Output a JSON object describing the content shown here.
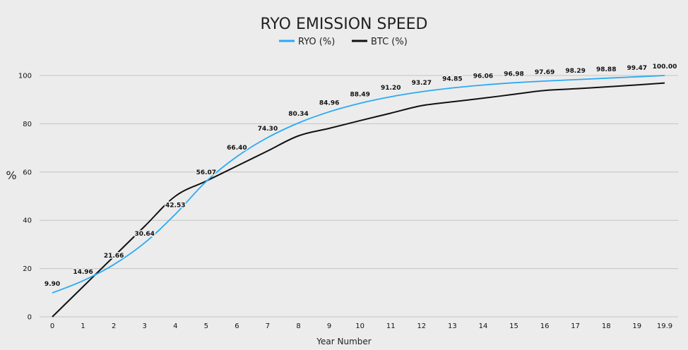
{
  "chart_data": {
    "type": "line",
    "title": "RYO EMISSION SPEED",
    "xlabel": "Year Number",
    "ylabel": "%",
    "ylim": [
      0,
      100
    ],
    "yticks": [
      "0",
      "20",
      "40",
      "60",
      "80",
      "100"
    ],
    "categories": [
      "0",
      "1",
      "2",
      "3",
      "4",
      "5",
      "6",
      "7",
      "8",
      "9",
      "10",
      "11",
      "12",
      "13",
      "14",
      "15",
      "16",
      "17",
      "18",
      "19",
      "19.9"
    ],
    "x": [
      0,
      1,
      2,
      3,
      4,
      5,
      6,
      7,
      8,
      9,
      10,
      11,
      12,
      13,
      14,
      15,
      16,
      17,
      18,
      19,
      19.9
    ],
    "grid": true,
    "legend": "top-center",
    "series": [
      {
        "name": "RYO (%)",
        "color": "#29aaf4",
        "values": [
          9.9,
          14.96,
          21.66,
          30.64,
          42.53,
          56.07,
          66.4,
          74.3,
          80.34,
          84.96,
          88.49,
          91.2,
          93.27,
          94.85,
          96.06,
          96.98,
          97.69,
          98.29,
          98.88,
          99.47,
          100.0
        ],
        "labels": [
          "9.90",
          "14.96",
          "21.66",
          "30.64",
          "42.53",
          "56.07",
          "66.40",
          "74.30",
          "80.34",
          "84.96",
          "88.49",
          "91.20",
          "93.27",
          "94.85",
          "96.06",
          "96.98",
          "97.69",
          "98.29",
          "98.88",
          "99.47",
          "100.00"
        ]
      },
      {
        "name": "BTC (%)",
        "color": "#111111",
        "values": [
          0,
          12.5,
          25,
          37.5,
          50,
          56.25,
          62.5,
          68.75,
          75,
          78.1,
          81.3,
          84.4,
          87.5,
          89.1,
          90.6,
          92.2,
          93.8,
          94.5,
          95.3,
          96.1,
          96.9
        ]
      }
    ]
  }
}
